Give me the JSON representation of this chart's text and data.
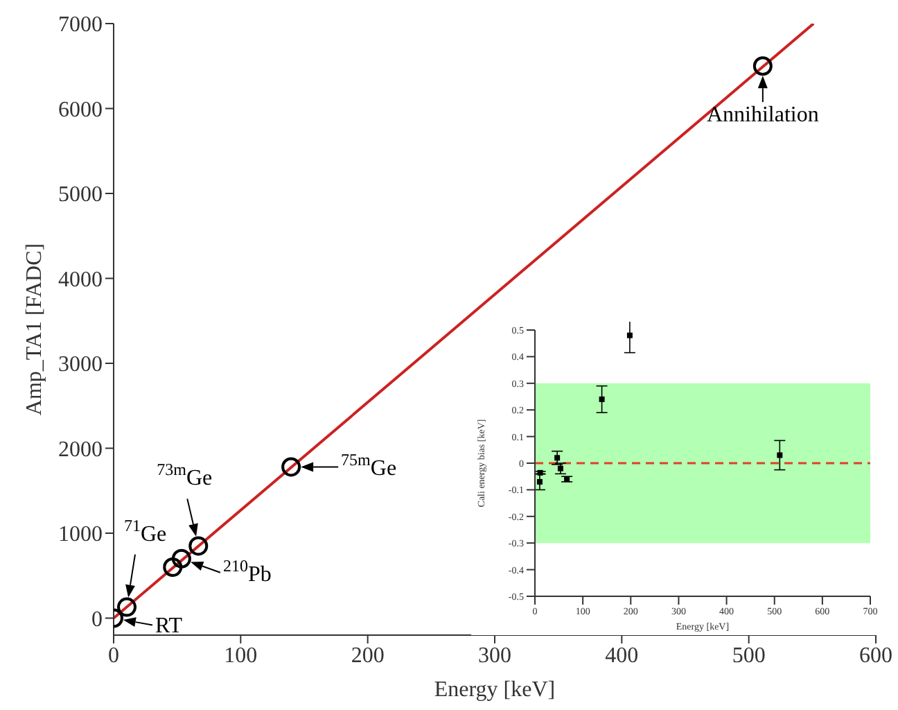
{
  "chart_data": [
    {
      "type": "scatter",
      "xlabel": "Energy [keV]",
      "ylabel": "Amp_TA1 [FADC]",
      "xlim": [
        0,
        600
      ],
      "xticks": [
        0,
        100,
        200,
        300,
        400,
        500,
        600
      ],
      "ylim": [
        -200,
        7000
      ],
      "yticks": [
        0,
        1000,
        2000,
        3000,
        4000,
        5000,
        6000,
        7000
      ],
      "series": [
        {
          "marker": "circle",
          "color": "#000000",
          "x": [
            0,
            10.37,
            46.5,
            53.4,
            66.7,
            139.7,
            511
          ],
          "values": [
            0,
            130,
            600,
            700,
            850,
            1780,
            6500
          ]
        },
        {
          "type": "line",
          "color": "#cc2222",
          "x": [
            0,
            551
          ],
          "values": [
            0,
            7000
          ]
        }
      ],
      "annotations": [
        {
          "text": "RT",
          "x": 0,
          "y": 0
        },
        {
          "text": "$^{71}$Ge",
          "x": 10.37,
          "y": 130
        },
        {
          "text": "$^{73m}$Ge",
          "x": 66.7,
          "y": 850
        },
        {
          "text": "$^{210}$Pb",
          "x": 53.4,
          "y": 700
        },
        {
          "text": "$^{75m}$Ge",
          "x": 139.7,
          "y": 1780
        },
        {
          "text": "Annihilation",
          "x": 511,
          "y": 6500
        }
      ]
    },
    {
      "type": "scatter",
      "xlabel": "Energy [keV]",
      "ylabel": "Cali energy bias [keV]",
      "xlim": [
        0,
        700
      ],
      "xticks": [
        0,
        100,
        200,
        300,
        400,
        500,
        600,
        700
      ],
      "ylim": [
        -0.5,
        0.5
      ],
      "yticks": [
        -0.5,
        -0.4,
        -0.3,
        -0.2,
        -0.1,
        0,
        0.1,
        0.2,
        0.3,
        0.4,
        0.5
      ],
      "marker": "square",
      "series": [
        {
          "color": "#000000",
          "x": [
            10,
            11,
            46.5,
            53.4,
            66.7,
            139.7,
            198,
            511
          ],
          "values": [
            -0.07,
            -0.036,
            0.02,
            -0.02,
            -0.06,
            0.24,
            0.48,
            0.03
          ],
          "errors": [
            0.03,
            0.005,
            0.025,
            0.02,
            0.01,
            0.05,
            0.065,
            0.055
          ]
        }
      ],
      "bands": [
        {
          "axis": "y",
          "from": -0.3,
          "to": 0.3,
          "color": "#b3ffb3"
        }
      ],
      "ref_lines": [
        {
          "axis": "y",
          "value": 0,
          "color": "#e0402a",
          "line_style": "dashed"
        }
      ]
    }
  ]
}
